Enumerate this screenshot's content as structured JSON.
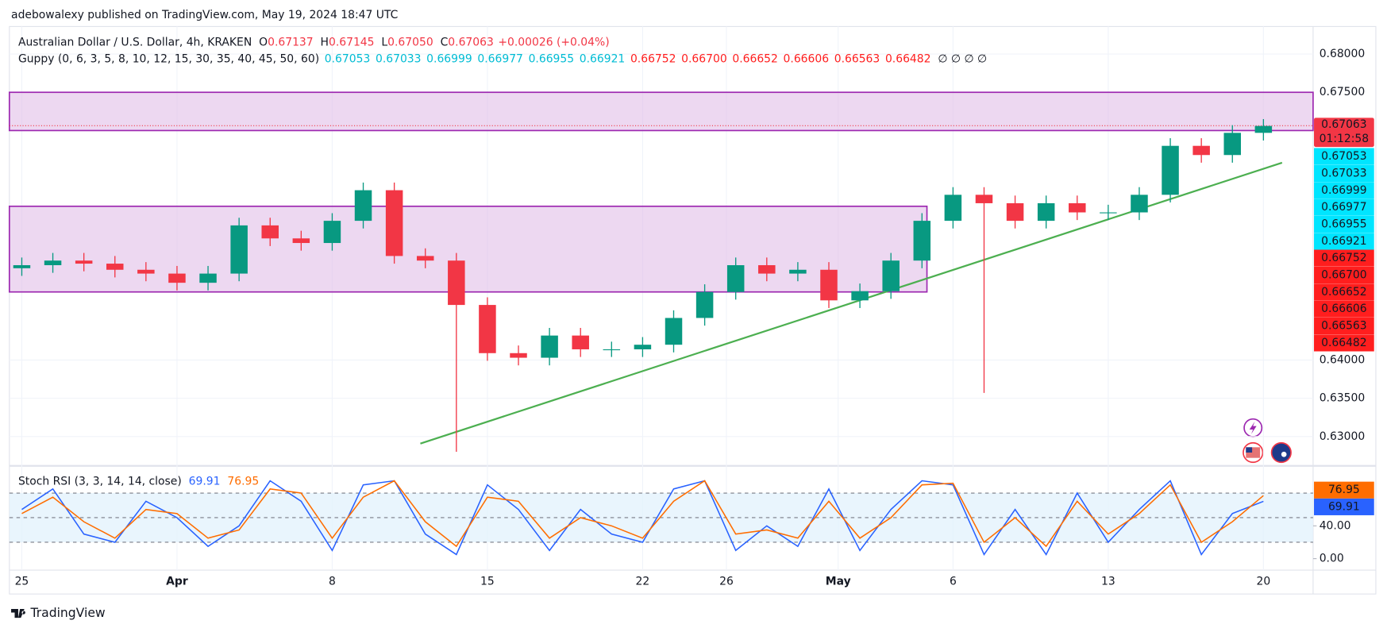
{
  "header": {
    "published": "adebowalexy published on TradingView.com, May 19, 2024 18:47 UTC",
    "symbol": "Australian Dollar / U.S. Dollar, 4h, KRAKEN",
    "ohlc": [
      {
        "label": "O",
        "value": "0.67137"
      },
      {
        "label": "H",
        "value": "0.67145"
      },
      {
        "label": "L",
        "value": "0.67050"
      },
      {
        "label": "C",
        "value": "0.67063"
      }
    ],
    "change": "+0.00026 (+0.04%)",
    "value_color": "#f23645",
    "guppy": {
      "title": "Guppy (0, 6, 3, 5, 8, 10, 12, 15, 30, 35, 40, 45, 50, 60)",
      "fast": [
        "0.67053",
        "0.67033",
        "0.66999",
        "0.66977",
        "0.66955",
        "0.66921"
      ],
      "fast_color": "#00e5ff",
      "fast_text_color": "#00bcd4",
      "slow": [
        "0.66752",
        "0.66700",
        "0.66652",
        "0.66606",
        "0.66563",
        "0.66482"
      ],
      "slow_color": "#ff1e1e",
      "empty": "∅ ∅ ∅ ∅"
    }
  },
  "chart_data": [
    {
      "type": "candlestick",
      "x": [
        0,
        1,
        2,
        3,
        4,
        5,
        6,
        7,
        8,
        9,
        10,
        11,
        12,
        13,
        14,
        15,
        16,
        17,
        18,
        19,
        20,
        21,
        22,
        23,
        24,
        25,
        26,
        27,
        28,
        29,
        30,
        31,
        32,
        33,
        34,
        35,
        36,
        37,
        38,
        39,
        40
      ],
      "open": [
        0.652,
        0.6524,
        0.653,
        0.6526,
        0.6518,
        0.6513,
        0.6501,
        0.6513,
        0.6576,
        0.6559,
        0.6553,
        0.6582,
        0.6622,
        0.6536,
        0.653,
        0.6472,
        0.6409,
        0.6403,
        0.6432,
        0.6414,
        0.6414,
        0.642,
        0.6455,
        0.6489,
        0.6524,
        0.6513,
        0.6518,
        0.6478,
        0.649,
        0.653,
        0.6582,
        0.6616,
        0.6605,
        0.6582,
        0.6605,
        0.6593,
        0.6593,
        0.6616,
        0.668,
        0.6668,
        0.6697
      ],
      "high": [
        0.6534,
        0.654,
        0.654,
        0.6536,
        0.6528,
        0.6523,
        0.6523,
        0.6586,
        0.6586,
        0.6569,
        0.6592,
        0.6632,
        0.6632,
        0.6546,
        0.654,
        0.6482,
        0.6419,
        0.6442,
        0.6442,
        0.6424,
        0.643,
        0.6465,
        0.6499,
        0.6534,
        0.6534,
        0.6528,
        0.6528,
        0.65,
        0.654,
        0.6592,
        0.6626,
        0.6626,
        0.6615,
        0.6615,
        0.6615,
        0.6603,
        0.6626,
        0.669,
        0.669,
        0.6707,
        0.6715
      ],
      "low": [
        0.651,
        0.6514,
        0.6516,
        0.6508,
        0.6503,
        0.6491,
        0.6491,
        0.6503,
        0.6549,
        0.6543,
        0.6543,
        0.6572,
        0.6526,
        0.652,
        0.628,
        0.6399,
        0.6393,
        0.6393,
        0.6404,
        0.6404,
        0.6404,
        0.641,
        0.6445,
        0.6479,
        0.6503,
        0.6503,
        0.6468,
        0.6468,
        0.648,
        0.652,
        0.6572,
        0.6357,
        0.6572,
        0.6572,
        0.6583,
        0.6583,
        0.6583,
        0.6606,
        0.6658,
        0.6658,
        0.6687
      ],
      "close": [
        0.6524,
        0.653,
        0.6526,
        0.6518,
        0.6513,
        0.6501,
        0.6513,
        0.6576,
        0.6559,
        0.6553,
        0.6582,
        0.6622,
        0.6536,
        0.653,
        0.6472,
        0.6409,
        0.6403,
        0.6432,
        0.6414,
        0.6414,
        0.642,
        0.6455,
        0.6489,
        0.6524,
        0.6513,
        0.6518,
        0.6478,
        0.649,
        0.653,
        0.6582,
        0.6616,
        0.6605,
        0.6582,
        0.6605,
        0.6593,
        0.6593,
        0.6616,
        0.668,
        0.6668,
        0.6697,
        0.6706
      ],
      "up_color": "#089981",
      "down_color": "#f23645",
      "xlim": [
        -0.4,
        41.6
      ],
      "xticks": [
        {
          "value": 0,
          "label": "25"
        },
        {
          "value": 5,
          "label": "Apr"
        },
        {
          "value": 10,
          "label": "8"
        },
        {
          "value": 15,
          "label": "15"
        },
        {
          "value": 20,
          "label": "22"
        },
        {
          "value": 22.7,
          "label": "26"
        },
        {
          "value": 26.3,
          "label": "May"
        },
        {
          "value": 30,
          "label": "6"
        },
        {
          "value": 35,
          "label": "13"
        },
        {
          "value": 40,
          "label": "20"
        }
      ],
      "ylim": [
        0.6264,
        0.6836
      ],
      "yticks": [
        {
          "value": 0.68,
          "label": "0.68000"
        },
        {
          "value": 0.675,
          "label": "0.67500"
        },
        {
          "value": 0.64,
          "label": "0.64000"
        },
        {
          "value": 0.635,
          "label": "0.63500"
        },
        {
          "value": 0.63,
          "label": "0.63000"
        }
      ],
      "grid": true,
      "last_price": {
        "value": 0.67063,
        "label": "0.67063",
        "countdown": "01:12:58",
        "color": "#f23645"
      },
      "zones": [
        {
          "top": 0.675,
          "bottom": 0.67,
          "from": -0.4,
          "to": 41.6
        },
        {
          "top": 0.6601,
          "bottom": 0.6489,
          "from": -0.4,
          "to": 29.16
        }
      ],
      "zone_color": "#9c27b0",
      "zone_fill": "#e1bee7",
      "trendline": {
        "x": [
          12.84,
          40.6
        ],
        "y": [
          0.62908,
          0.6658
        ],
        "color": "#4caf50"
      }
    },
    {
      "type": "line",
      "title": "Stoch RSI (3, 3, 14, 14, close)",
      "x": [
        0,
        1,
        2,
        3,
        4,
        5,
        6,
        7,
        8,
        9,
        10,
        11,
        12,
        13,
        14,
        15,
        16,
        17,
        18,
        19,
        20,
        21,
        22,
        23,
        24,
        25,
        26,
        27,
        28,
        29,
        30,
        31,
        32,
        33,
        34,
        35,
        36,
        37,
        38,
        39,
        40
      ],
      "series": [
        {
          "color": "#2962ff",
          "values": [
            60,
            85,
            30,
            20,
            70,
            50,
            15,
            40,
            95,
            70,
            10,
            90,
            95,
            30,
            5,
            90,
            60,
            10,
            60,
            30,
            20,
            85,
            95,
            10,
            40,
            15,
            85,
            10,
            60,
            95,
            90,
            5,
            60,
            5,
            80,
            20,
            60,
            95,
            5,
            55,
            69.91
          ]
        },
        {
          "color": "#ff6d00",
          "values": [
            55,
            75,
            45,
            25,
            60,
            55,
            25,
            35,
            85,
            80,
            25,
            75,
            95,
            45,
            15,
            75,
            70,
            25,
            50,
            40,
            25,
            70,
            95,
            30,
            35,
            25,
            70,
            25,
            50,
            90,
            92,
            20,
            50,
            15,
            70,
            30,
            55,
            90,
            20,
            45,
            76.95
          ]
        }
      ],
      "xlim": [
        -0.4,
        41.6
      ],
      "ylim": [
        -14,
        110
      ],
      "yticks": [
        {
          "value": 0,
          "label": "0.00"
        },
        {
          "value": 40,
          "label": "40.00"
        }
      ],
      "bands": {
        "lower": 20,
        "mid": 50,
        "upper": 80
      },
      "band_color": "#e3f2fd"
    }
  ],
  "footer": {
    "brand": "TradingView"
  }
}
